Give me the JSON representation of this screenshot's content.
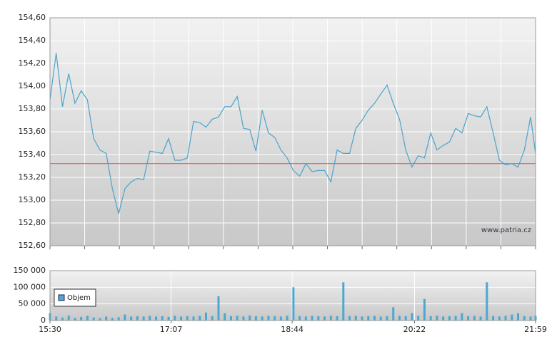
{
  "chart_data": [
    {
      "type": "line",
      "x": [
        "15:30",
        "15:35",
        "15:40",
        "15:45",
        "15:50",
        "15:55",
        "16:00",
        "16:05",
        "16:10",
        "16:15",
        "16:20",
        "16:25",
        "16:30",
        "16:35",
        "16:40",
        "16:45",
        "16:50",
        "16:55",
        "17:00",
        "17:05",
        "17:10",
        "17:15",
        "17:20",
        "17:25",
        "17:30",
        "17:35",
        "17:40",
        "17:45",
        "17:50",
        "17:55",
        "18:00",
        "18:05",
        "18:10",
        "18:15",
        "18:20",
        "18:25",
        "18:30",
        "18:35",
        "18:40",
        "18:45",
        "18:50",
        "18:55",
        "19:00",
        "19:05",
        "19:10",
        "19:15",
        "19:20",
        "19:25",
        "19:30",
        "19:35",
        "19:40",
        "19:45",
        "19:50",
        "19:55",
        "20:00",
        "20:05",
        "20:10",
        "20:15",
        "20:20",
        "20:25",
        "20:30",
        "20:35",
        "20:40",
        "20:45",
        "20:50",
        "20:55",
        "21:00",
        "21:05",
        "21:10",
        "21:15",
        "21:20",
        "21:25",
        "21:30",
        "21:35",
        "21:40",
        "21:45",
        "21:50",
        "21:55",
        "21:59"
      ],
      "values": [
        153.88,
        154.29,
        153.82,
        154.11,
        153.85,
        153.96,
        153.88,
        153.54,
        153.44,
        153.41,
        153.1,
        152.88,
        153.1,
        153.16,
        153.19,
        153.18,
        153.43,
        153.42,
        153.41,
        153.54,
        153.35,
        153.35,
        153.37,
        153.69,
        153.68,
        153.64,
        153.71,
        153.73,
        153.82,
        153.82,
        153.91,
        153.63,
        153.62,
        153.43,
        153.79,
        153.59,
        153.55,
        153.44,
        153.37,
        153.26,
        153.21,
        153.32,
        153.25,
        153.26,
        153.26,
        153.16,
        153.44,
        153.41,
        153.41,
        153.63,
        153.7,
        153.79,
        153.85,
        153.93,
        154.01,
        153.85,
        153.71,
        153.44,
        153.29,
        153.39,
        153.37,
        153.59,
        153.44,
        153.48,
        153.51,
        153.63,
        153.59,
        153.76,
        153.74,
        153.73,
        153.82,
        153.59,
        153.35,
        153.31,
        153.32,
        153.29,
        153.44,
        153.73,
        153.41
      ],
      "color": "#4ba3cc",
      "xlim": [
        "15:30",
        "21:59"
      ],
      "ylim": [
        152.6,
        154.6
      ],
      "yticks": [
        {
          "value": 152.6,
          "label": "152,60"
        },
        {
          "value": 152.8,
          "label": "152,80"
        },
        {
          "value": 153.0,
          "label": "153,00"
        },
        {
          "value": 153.2,
          "label": "153,20"
        },
        {
          "value": 153.4,
          "label": "153,40"
        },
        {
          "value": 153.6,
          "label": "153,60"
        },
        {
          "value": 153.8,
          "label": "153,80"
        },
        {
          "value": 154.0,
          "label": "154,00"
        },
        {
          "value": 154.2,
          "label": "154,20"
        },
        {
          "value": 154.4,
          "label": "154,40"
        },
        {
          "value": 154.6,
          "label": "154,60"
        }
      ],
      "reference_line": 153.32,
      "reference_color": "#d9534f",
      "watermark": "www.patria.cz",
      "grid": true
    },
    {
      "type": "bar",
      "x": [
        "15:30",
        "15:35",
        "15:40",
        "15:45",
        "15:50",
        "15:55",
        "16:00",
        "16:05",
        "16:10",
        "16:15",
        "16:20",
        "16:25",
        "16:30",
        "16:35",
        "16:40",
        "16:45",
        "16:50",
        "16:55",
        "17:00",
        "17:05",
        "17:10",
        "17:15",
        "17:20",
        "17:25",
        "17:30",
        "17:35",
        "17:40",
        "17:45",
        "17:50",
        "17:55",
        "18:00",
        "18:05",
        "18:10",
        "18:15",
        "18:20",
        "18:25",
        "18:30",
        "18:35",
        "18:40",
        "18:45",
        "18:50",
        "18:55",
        "19:00",
        "19:05",
        "19:10",
        "19:15",
        "19:20",
        "19:25",
        "19:30",
        "19:35",
        "19:40",
        "19:45",
        "19:50",
        "19:55",
        "20:00",
        "20:05",
        "20:10",
        "20:15",
        "20:20",
        "20:25",
        "20:30",
        "20:35",
        "20:40",
        "20:45",
        "20:50",
        "20:55",
        "21:00",
        "21:05",
        "21:10",
        "21:15",
        "21:20",
        "21:25",
        "21:30",
        "21:35",
        "21:40",
        "21:45",
        "21:50",
        "21:55",
        "21:59"
      ],
      "series": [
        {
          "name": "Objem",
          "color": "#4ba8d1",
          "values": [
            22000,
            12000,
            9000,
            15000,
            8000,
            11000,
            14000,
            9000,
            7000,
            12000,
            8000,
            10000,
            18000,
            12000,
            13000,
            12000,
            14000,
            12000,
            13000,
            11000,
            14000,
            12000,
            13000,
            12000,
            14000,
            24000,
            13000,
            73000,
            22000,
            13000,
            14000,
            12000,
            15000,
            13000,
            12000,
            14000,
            13000,
            12000,
            14000,
            100000,
            13000,
            12000,
            14000,
            13000,
            12000,
            14000,
            13000,
            115000,
            13000,
            14000,
            12000,
            13000,
            14000,
            12000,
            13000,
            40000,
            14000,
            13000,
            22000,
            14000,
            65000,
            13000,
            14000,
            12000,
            13000,
            14000,
            22000,
            13000,
            14000,
            12000,
            115000,
            13000,
            12000,
            14000,
            18000,
            22000,
            13000,
            12000,
            14000
          ]
        }
      ],
      "xlim": [
        "15:30",
        "21:59"
      ],
      "xticks": [
        "15:30",
        "17:07",
        "18:44",
        "20:22",
        "21:59"
      ],
      "ylim": [
        0,
        150000
      ],
      "yticks": [
        0,
        {
          "value": 50000,
          "label": "50 000"
        },
        {
          "value": 100000,
          "label": "100 000"
        },
        {
          "value": 150000,
          "label": "150 000"
        }
      ],
      "legend": "lower-left",
      "grid": true
    }
  ]
}
